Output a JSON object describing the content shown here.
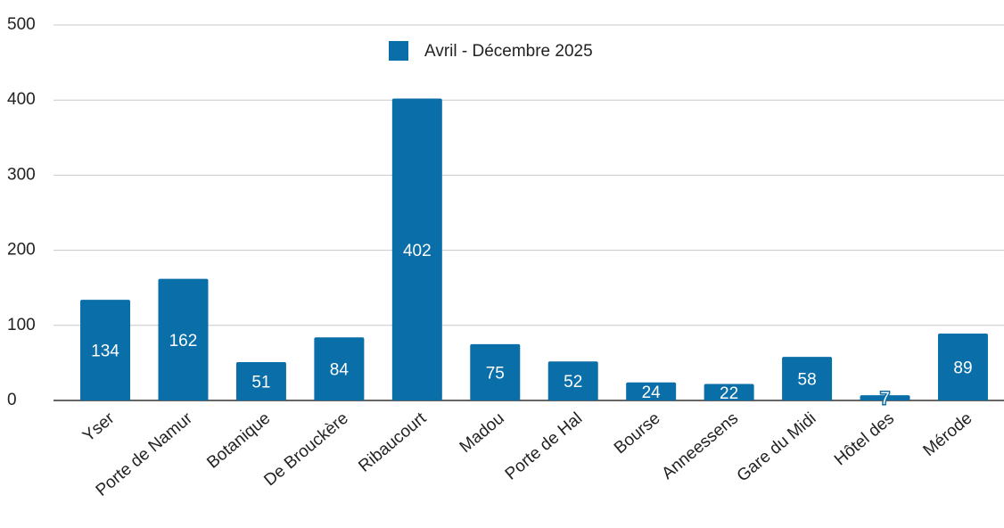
{
  "chart_data": {
    "type": "bar",
    "legend": "Avril - Décembre 2025",
    "categories": [
      "Yser",
      "Porte de Namur",
      "Botanique",
      "De Brouckère",
      "Ribaucourt",
      "Madou",
      "Porte de Hal",
      "Bourse",
      "Anneessens",
      "Gare du Midi",
      "Hôtel des",
      "Mérode"
    ],
    "values": [
      134,
      162,
      51,
      84,
      402,
      75,
      52,
      24,
      22,
      58,
      7,
      89
    ],
    "color": "#0a6ea9",
    "ylim": [
      0,
      500
    ],
    "yticks": [
      0,
      100,
      200,
      300,
      400,
      500
    ],
    "grid": true,
    "legend_position": "top"
  }
}
